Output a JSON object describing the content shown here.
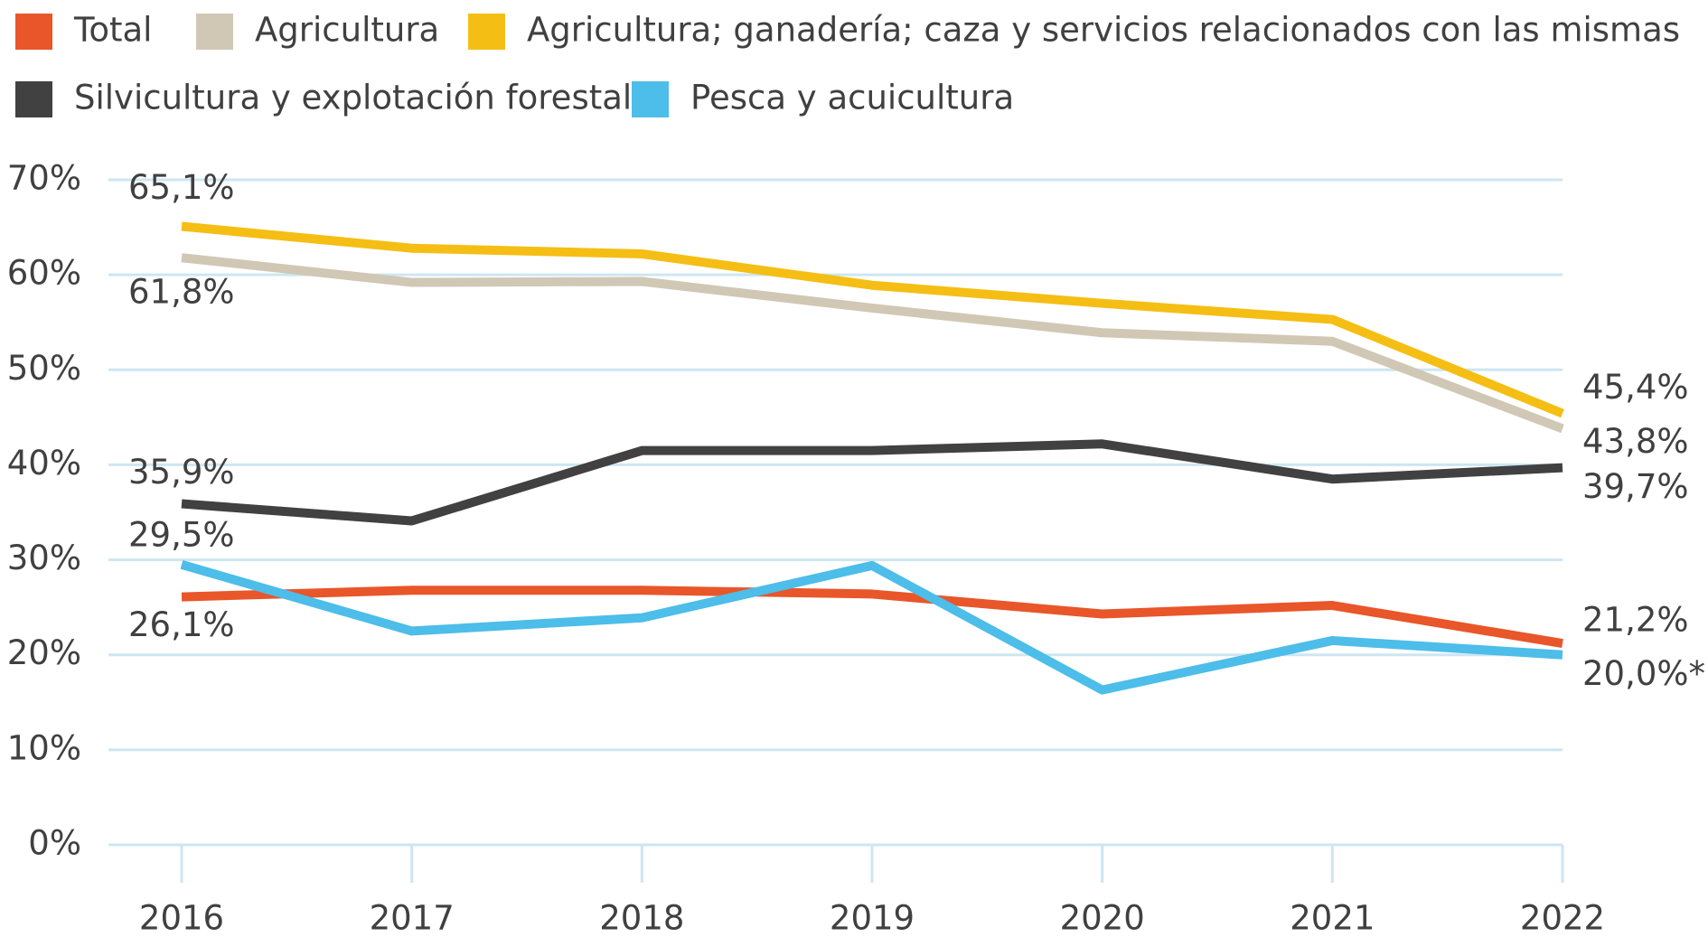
{
  "chart_data": {
    "type": "line",
    "categories": [
      "2016",
      "2017",
      "2018",
      "2019",
      "2020",
      "2021",
      "2022"
    ],
    "series": [
      {
        "name": "Total",
        "color": "#e8562a",
        "values": [
          26.1,
          26.8,
          26.8,
          26.4,
          24.3,
          25.2,
          21.2
        ],
        "value_labels": [
          "26,1%",
          null,
          null,
          null,
          null,
          null,
          "21,2%"
        ]
      },
      {
        "name": "Agricultura",
        "color": "#d0c7b5",
        "values": [
          61.8,
          59.2,
          59.3,
          56.5,
          53.9,
          53.0,
          43.8
        ],
        "value_labels": [
          "61,8%",
          null,
          null,
          null,
          null,
          null,
          "43,8%"
        ]
      },
      {
        "name": "Agricultura; ganadería; caza y servicios relacionados con las mismas",
        "color": "#f5be14",
        "values": [
          65.1,
          62.8,
          62.2,
          58.9,
          57.0,
          55.3,
          45.4
        ],
        "value_labels": [
          "65,1%",
          null,
          null,
          null,
          null,
          null,
          "45,4%"
        ]
      },
      {
        "name": "Silvicultura y explotación forestal",
        "color": "#414141",
        "values": [
          35.9,
          34.1,
          41.5,
          41.5,
          42.2,
          38.5,
          39.7
        ],
        "value_labels": [
          "35,9%",
          null,
          null,
          null,
          null,
          null,
          "39,7%"
        ]
      },
      {
        "name": "Pesca y acuicultura",
        "color": "#4dbde9",
        "values": [
          29.5,
          22.5,
          23.9,
          29.4,
          16.3,
          21.5,
          20.0
        ],
        "value_labels": [
          "29,5%",
          null,
          null,
          null,
          null,
          null,
          "20,0%*"
        ]
      }
    ],
    "ylim": [
      0,
      70
    ],
    "yticks": [
      {
        "value": 0,
        "label": "0%"
      },
      {
        "value": 10,
        "label": "10%"
      },
      {
        "value": 20,
        "label": "20%"
      },
      {
        "value": 30,
        "label": "30%"
      },
      {
        "value": 40,
        "label": "40%"
      },
      {
        "value": 50,
        "label": "50%"
      },
      {
        "value": 60,
        "label": "60%"
      },
      {
        "value": 70,
        "label": "70%"
      }
    ],
    "grid": true
  }
}
